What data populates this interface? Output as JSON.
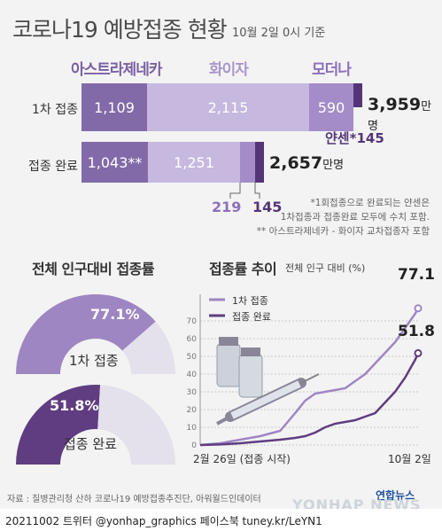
{
  "title": "코로나19 예방접종 현황",
  "subtitle": "10월 2일 0시 기준",
  "vaccine_labels": {
    "astra": "아스트라제네카",
    "pfizer": "화이자",
    "moderna": "모더나",
    "janssen": "얀센*",
    "janssen_value": "145"
  },
  "rows": [
    {
      "label": "1차 접종",
      "segments": [
        "1,109",
        "2,115",
        "590"
      ],
      "total": "3,959",
      "unit": "만명"
    },
    {
      "label": "접종 완료",
      "segments": [
        "1,043**",
        "1,251"
      ],
      "total": "2,657",
      "unit": "만명"
    }
  ],
  "below_labels": {
    "moderna": "219",
    "janssen": "145"
  },
  "notes": [
    "*1회접종으로 완료되는 얀센은",
    "1차접종과 접종완료 모두에 수치 포함.",
    "** 아스트라제네카 - 화이자 교차접종자 포함"
  ],
  "donut_section_title": "전체 인구대비 접종률",
  "donuts": [
    {
      "value_text": "77.1%",
      "label": "1차 접종",
      "value": 77.1
    },
    {
      "value_text": "51.8%",
      "label": "접종 완료",
      "value": 51.8
    }
  ],
  "trend_title": "접종률 추이",
  "trend_subtitle": "전체 인구 대비 (%)",
  "colors": {
    "first": "#9e86c2",
    "second": "#5f3d80",
    "astra": "#826aa8",
    "pfizer": "#c6b8df",
    "moderna": "#a48cc8",
    "janssen": "#553577",
    "donut_rest": "#e4e0ec"
  },
  "chart_data": {
    "type": "line",
    "title": "접종률 추이",
    "ylabel": "전체 인구 대비 (%)",
    "x_labels": [
      "2월 26일 (접종 시작)",
      "10월 2일"
    ],
    "ylim": [
      0,
      80
    ],
    "yticks": [
      0,
      10,
      20,
      30,
      40,
      50,
      60,
      70
    ],
    "series": [
      {
        "name": "1차 접종",
        "end_label": "77.1",
        "x": [
          0,
          20,
          40,
          60,
          80,
          95,
          105,
          115,
          125,
          135,
          145,
          155,
          165,
          175,
          185,
          195,
          205,
          215,
          218
        ],
        "values": [
          0,
          1,
          3,
          5,
          8,
          18,
          25,
          29,
          30,
          31,
          32,
          36,
          40,
          46,
          52,
          58,
          66,
          74,
          77.1
        ]
      },
      {
        "name": "접종 완료",
        "end_label": "51.8",
        "x": [
          0,
          20,
          40,
          60,
          80,
          95,
          105,
          115,
          125,
          135,
          145,
          155,
          165,
          175,
          185,
          195,
          205,
          215,
          218
        ],
        "values": [
          0,
          0.3,
          1,
          2,
          3,
          4,
          5,
          7,
          10,
          12,
          13,
          14,
          16,
          18,
          24,
          30,
          38,
          48,
          51.8
        ]
      }
    ]
  },
  "source": "자료 : 질병관리청 산하 코로나19 예방접종추진단, 아워월드인데이터",
  "brand": "연합뉴스",
  "watermark": "YONHAP NEWS",
  "footer_line": "20211002  트위터 @yonhap_graphics  페이스북 tuney.kr/LeYN1"
}
